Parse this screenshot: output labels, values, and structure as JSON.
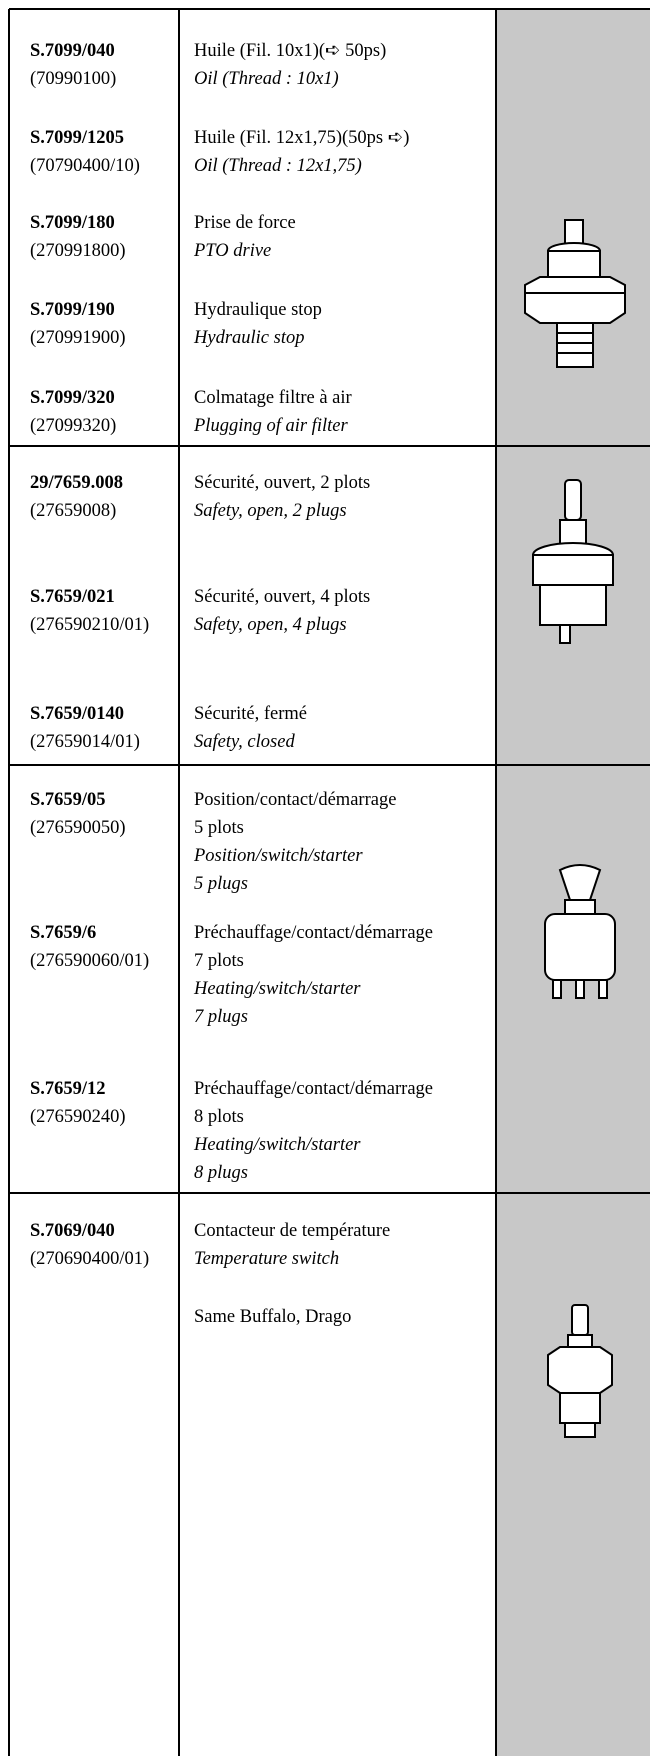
{
  "groups": [
    {
      "items": [
        {
          "code": "S.7099/040",
          "ref": "(70990100)",
          "fr": [
            "Huile (Fil. 10x1)(➪ 50ps)"
          ],
          "en": [
            "Oil (Thread : 10x1)"
          ]
        },
        {
          "code": "S.7099/1205",
          "ref": "(70790400/10)",
          "fr": [
            "Huile (Fil. 12x1,75)(50ps ➪)"
          ],
          "en": [
            "Oil (Thread : 12x1,75)"
          ]
        },
        {
          "code": "S.7099/180",
          "ref": "(270991800)",
          "fr": [
            "Prise de force"
          ],
          "en": [
            "PTO drive"
          ]
        },
        {
          "code": "S.7099/190",
          "ref": "(270991900)",
          "fr": [
            "Hydraulique stop"
          ],
          "en": [
            "Hydraulic stop"
          ]
        },
        {
          "code": "S.7099/320",
          "ref": "(27099320)",
          "fr": [
            "Colmatage filtre à air"
          ],
          "en": [
            "Plugging of air filter"
          ]
        }
      ]
    },
    {
      "items": [
        {
          "code": "29/7659.008",
          "ref": "(27659008)",
          "fr": [
            "Sécurité, ouvert, 2 plots"
          ],
          "en": [
            "Safety, open, 2 plugs"
          ]
        },
        {
          "code": "S.7659/021",
          "ref": "(276590210/01)",
          "fr": [
            "Sécurité, ouvert, 4 plots"
          ],
          "en": [
            "Safety, open, 4 plugs"
          ]
        },
        {
          "code": "S.7659/0140",
          "ref": "(27659014/01)",
          "fr": [
            "Sécurité, fermé"
          ],
          "en": [
            "Safety, closed"
          ]
        }
      ]
    },
    {
      "items": [
        {
          "code": "S.7659/05",
          "ref": "(276590050)",
          "fr": [
            "Position/contact/démarrage",
            "5 plots"
          ],
          "en": [
            "Position/switch/starter",
            "5 plugs"
          ]
        },
        {
          "code": "S.7659/6",
          "ref": "(276590060/01)",
          "fr": [
            "Préchauffage/contact/démarrage",
            "7 plots"
          ],
          "en": [
            "Heating/switch/starter",
            "7 plugs"
          ]
        },
        {
          "code": "S.7659/12",
          "ref": "(276590240)",
          "fr": [
            "Préchauffage/contact/démarrage",
            "8 plots"
          ],
          "en": [
            "Heating/switch/starter",
            "8 plugs"
          ]
        }
      ]
    },
    {
      "items": [
        {
          "code": "S.7069/040",
          "ref": "(270690400/01)",
          "fr": [
            "Contacteur de température"
          ],
          "en": [
            "Temperature switch"
          ]
        }
      ],
      "note": "Same Buffalo, Drago"
    }
  ]
}
